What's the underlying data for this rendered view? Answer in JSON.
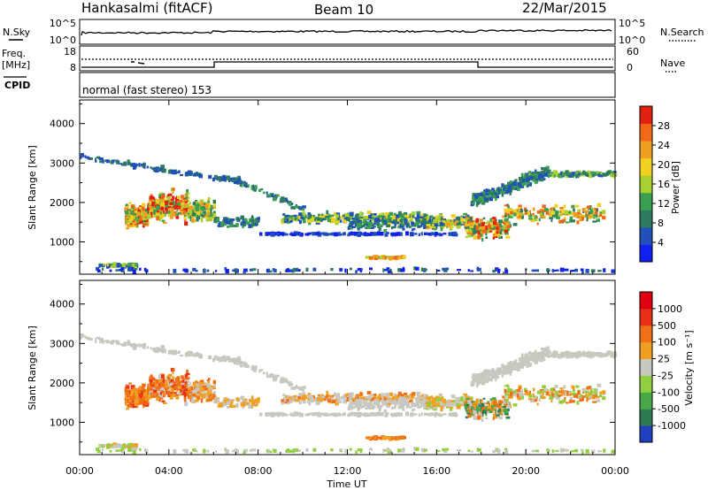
{
  "header": {
    "station": "Hankasalmi (fitACF)",
    "beam": "Beam 10",
    "date": "22/Mar/2015"
  },
  "panels": {
    "nsky_label": "N.Sky",
    "nsearch_label": "N.Search",
    "freq_label_line1": "Freq.",
    "freq_label_line2": "[MHz]",
    "nave_label": "Nave",
    "cpid_label": "CPID",
    "mode_text": "normal (fast stereo) 153",
    "noise_ticks": [
      "10^5",
      "10^0"
    ],
    "freq_ticks": [
      "18",
      "8"
    ],
    "nave_ticks": [
      "60",
      "0"
    ]
  },
  "chart_data": [
    {
      "type": "heatmap",
      "title": "",
      "xlabel": "Time UT",
      "ylabel": "Slant Range [km]",
      "x_ticks": [
        "00:00",
        "04:00",
        "08:00",
        "12:00",
        "16:00",
        "20:00",
        "00:00"
      ],
      "xlim": [
        0,
        24
      ],
      "ylim": [
        180,
        4600
      ],
      "y_ticks": [
        1000,
        2000,
        3000,
        4000
      ],
      "colorbar": {
        "label": "Power [dB]",
        "ticks": [
          "4",
          "8",
          "12",
          "16",
          "20",
          "24",
          "28"
        ],
        "colors": [
          "#1020f0",
          "#2050b8",
          "#2e7a60",
          "#3aa050",
          "#a8d030",
          "#f0d020",
          "#f0a020",
          "#f06818",
          "#e02010"
        ]
      }
    },
    {
      "type": "heatmap",
      "title": "",
      "xlabel": "Time UT",
      "ylabel": "Slant Range [km]",
      "x_ticks": [
        "00:00",
        "04:00",
        "08:00",
        "12:00",
        "16:00",
        "20:00",
        "00:00"
      ],
      "xlim": [
        0,
        24
      ],
      "ylim": [
        180,
        4600
      ],
      "y_ticks": [
        1000,
        2000,
        3000,
        4000
      ],
      "colorbar": {
        "label": "Velocity [m s⁻¹]",
        "ticks": [
          "1000",
          "500",
          "100",
          "25",
          "-25",
          "-100",
          "-500",
          "-1000"
        ],
        "colors": [
          "#2040c0",
          "#2e7a55",
          "#48a848",
          "#90d040",
          "#c8c8c0",
          "#f0a020",
          "#f07018",
          "#e83018",
          "#e00010"
        ]
      }
    }
  ]
}
